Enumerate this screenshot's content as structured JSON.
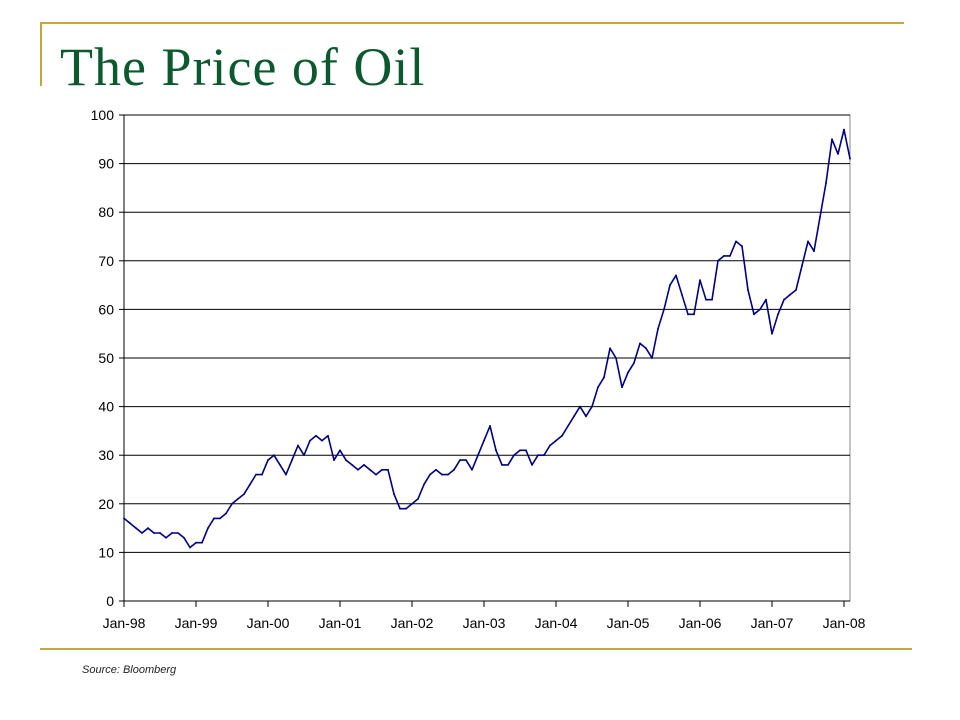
{
  "slide": {
    "title": "The Price of Oil",
    "source": "Source:  Bloomberg",
    "accent_color": "#c5a63a",
    "title_color": "#0b5a2f"
  },
  "chart_data": {
    "type": "line",
    "title": "",
    "xlabel": "",
    "ylabel": "",
    "ylim": [
      0,
      100
    ],
    "yticks": [
      0,
      10,
      20,
      30,
      40,
      50,
      60,
      70,
      80,
      90,
      100
    ],
    "ytick_labels": [
      "0",
      "10",
      "20",
      "30",
      "40",
      "50",
      "60",
      "70",
      "80",
      "90",
      "100"
    ],
    "xlim": [
      "1998-01",
      "2008-02"
    ],
    "xticks": [
      "1998-01",
      "1999-01",
      "2000-01",
      "2001-01",
      "2002-01",
      "2003-01",
      "2004-01",
      "2005-01",
      "2006-01",
      "2007-01",
      "2008-01"
    ],
    "xtick_labels": [
      "Jan-98",
      "Jan-99",
      "Jan-00",
      "Jan-01",
      "Jan-02",
      "Jan-03",
      "Jan-04",
      "Jan-05",
      "Jan-06",
      "Jan-07",
      "Jan-08"
    ],
    "grid": "horizontal",
    "legend": "none",
    "line_color": "#000080",
    "series": [
      {
        "name": "",
        "x": [
          "1998-01",
          "1998-02",
          "1998-03",
          "1998-04",
          "1998-05",
          "1998-06",
          "1998-07",
          "1998-08",
          "1998-09",
          "1998-10",
          "1998-11",
          "1998-12",
          "1999-01",
          "1999-02",
          "1999-03",
          "1999-04",
          "1999-05",
          "1999-06",
          "1999-07",
          "1999-08",
          "1999-09",
          "1999-10",
          "1999-11",
          "1999-12",
          "2000-01",
          "2000-02",
          "2000-03",
          "2000-04",
          "2000-05",
          "2000-06",
          "2000-07",
          "2000-08",
          "2000-09",
          "2000-10",
          "2000-11",
          "2000-12",
          "2001-01",
          "2001-02",
          "2001-03",
          "2001-04",
          "2001-05",
          "2001-06",
          "2001-07",
          "2001-08",
          "2001-09",
          "2001-10",
          "2001-11",
          "2001-12",
          "2002-01",
          "2002-02",
          "2002-03",
          "2002-04",
          "2002-05",
          "2002-06",
          "2002-07",
          "2002-08",
          "2002-09",
          "2002-10",
          "2002-11",
          "2002-12",
          "2003-01",
          "2003-02",
          "2003-03",
          "2003-04",
          "2003-05",
          "2003-06",
          "2003-07",
          "2003-08",
          "2003-09",
          "2003-10",
          "2003-11",
          "2003-12",
          "2004-01",
          "2004-02",
          "2004-03",
          "2004-04",
          "2004-05",
          "2004-06",
          "2004-07",
          "2004-08",
          "2004-09",
          "2004-10",
          "2004-11",
          "2004-12",
          "2005-01",
          "2005-02",
          "2005-03",
          "2005-04",
          "2005-05",
          "2005-06",
          "2005-07",
          "2005-08",
          "2005-09",
          "2005-10",
          "2005-11",
          "2005-12",
          "2006-01",
          "2006-02",
          "2006-03",
          "2006-04",
          "2006-05",
          "2006-06",
          "2006-07",
          "2006-08",
          "2006-09",
          "2006-10",
          "2006-11",
          "2006-12",
          "2007-01",
          "2007-02",
          "2007-03",
          "2007-04",
          "2007-05",
          "2007-06",
          "2007-07",
          "2007-08",
          "2007-09",
          "2007-10",
          "2007-11",
          "2007-12",
          "2008-01",
          "2008-02"
        ],
        "values": [
          17,
          16,
          15,
          14,
          15,
          14,
          14,
          13,
          14,
          14,
          13,
          11,
          12,
          12,
          15,
          17,
          17,
          18,
          20,
          21,
          22,
          24,
          26,
          26,
          29,
          30,
          28,
          26,
          29,
          32,
          30,
          33,
          34,
          33,
          34,
          29,
          31,
          29,
          28,
          27,
          28,
          27,
          26,
          27,
          27,
          22,
          19,
          19,
          20,
          21,
          24,
          26,
          27,
          26,
          26,
          27,
          29,
          29,
          27,
          30,
          33,
          36,
          31,
          28,
          28,
          30,
          31,
          31,
          28,
          30,
          30,
          32,
          33,
          34,
          36,
          38,
          40,
          38,
          40,
          44,
          46,
          52,
          50,
          44,
          47,
          49,
          53,
          52,
          50,
          56,
          60,
          65,
          67,
          63,
          59,
          59,
          66,
          62,
          62,
          70,
          71,
          71,
          74,
          73,
          64,
          59,
          60,
          62,
          55,
          59,
          62,
          63,
          64,
          69,
          74,
          72,
          79,
          86,
          95,
          92,
          97,
          91
        ]
      }
    ]
  }
}
